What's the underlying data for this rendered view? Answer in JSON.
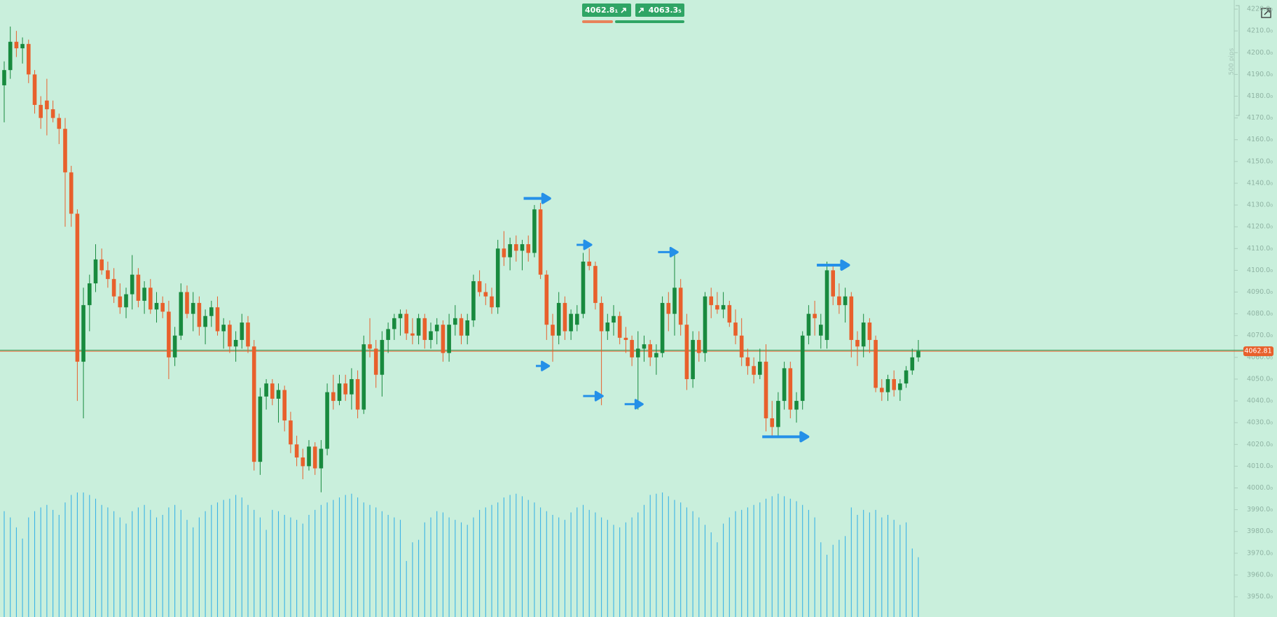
{
  "chart_data": {
    "type": "candlestick",
    "ylim": [
      3940.7,
      4224.2
    ],
    "yticks": [
      {
        "value": 3950,
        "label": "3950.0₀"
      },
      {
        "value": 3960,
        "label": "3960.0₀"
      },
      {
        "value": 3970,
        "label": "3970.0₀"
      },
      {
        "value": 3980,
        "label": "3980.0₀"
      },
      {
        "value": 3990,
        "label": "3990.0₀"
      },
      {
        "value": 4000,
        "label": "4000.0₀"
      },
      {
        "value": 4010,
        "label": "4010.0₀"
      },
      {
        "value": 4020,
        "label": "4020.0₀"
      },
      {
        "value": 4030,
        "label": "4030.0₀"
      },
      {
        "value": 4040,
        "label": "4040.0₀"
      },
      {
        "value": 4050,
        "label": "4050.0₀"
      },
      {
        "value": 4060,
        "label": "4060.0₀"
      },
      {
        "value": 4070,
        "label": "4070.0₀"
      },
      {
        "value": 4080,
        "label": "4080.0₀"
      },
      {
        "value": 4090,
        "label": "4090.0₀"
      },
      {
        "value": 4100,
        "label": "4100.0₀"
      },
      {
        "value": 4110,
        "label": "4110.0₀"
      },
      {
        "value": 4120,
        "label": "4120.0₀"
      },
      {
        "value": 4130,
        "label": "4130.0₀"
      },
      {
        "value": 4140,
        "label": "4140.0₀"
      },
      {
        "value": 4150,
        "label": "4150.0₀"
      },
      {
        "value": 4160,
        "label": "4160.0₀"
      },
      {
        "value": 4170,
        "label": "4170.0₀"
      },
      {
        "value": 4180,
        "label": "4180.0₀"
      },
      {
        "value": 4190,
        "label": "4190.0₀"
      },
      {
        "value": 4200,
        "label": "4200.0₀"
      },
      {
        "value": 4210,
        "label": "4210.0₀"
      },
      {
        "value": 4220,
        "label": "4220.0₀"
      }
    ],
    "up_color": "#188a3e",
    "down_color": "#e8602c",
    "volume_color": "#3bb3e6",
    "last_price": 4062.81,
    "ruler_label": "500 pips",
    "ohlc": [
      [
        4185,
        4196,
        4168,
        4192
      ],
      [
        4192,
        4212,
        4188,
        4205
      ],
      [
        4205,
        4210,
        4198,
        4202
      ],
      [
        4202,
        4207,
        4195,
        4204
      ],
      [
        4204,
        4206,
        4186,
        4190
      ],
      [
        4190,
        4192,
        4172,
        4176
      ],
      [
        4176,
        4180,
        4165,
        4170
      ],
      [
        4178,
        4188,
        4162,
        4174
      ],
      [
        4174,
        4178,
        4168,
        4170
      ],
      [
        4170,
        4172,
        4158,
        4165
      ],
      [
        4165,
        4170,
        4120,
        4145
      ],
      [
        4145,
        4148,
        4120,
        4126
      ],
      [
        4126,
        4128,
        4040,
        4058
      ],
      [
        4058,
        4092,
        4032,
        4084
      ],
      [
        4084,
        4098,
        4072,
        4094
      ],
      [
        4094,
        4112,
        4090,
        4105
      ],
      [
        4105,
        4110,
        4098,
        4100
      ],
      [
        4100,
        4104,
        4092,
        4096
      ],
      [
        4096,
        4101,
        4085,
        4088
      ],
      [
        4088,
        4094,
        4080,
        4083
      ],
      [
        4083,
        4092,
        4078,
        4089
      ],
      [
        4089,
        4107,
        4082,
        4098
      ],
      [
        4098,
        4101,
        4083,
        4086
      ],
      [
        4086,
        4095,
        4080,
        4092
      ],
      [
        4092,
        4096,
        4080,
        4082
      ],
      [
        4082,
        4090,
        4076,
        4085
      ],
      [
        4085,
        4088,
        4078,
        4081
      ],
      [
        4081,
        4086,
        4050,
        4060
      ],
      [
        4060,
        4074,
        4056,
        4070
      ],
      [
        4070,
        4094,
        4068,
        4090
      ],
      [
        4090,
        4093,
        4078,
        4080
      ],
      [
        4080,
        4090,
        4072,
        4085
      ],
      [
        4085,
        4088,
        4070,
        4074
      ],
      [
        4074,
        4082,
        4066,
        4079
      ],
      [
        4079,
        4086,
        4074,
        4083
      ],
      [
        4083,
        4088,
        4070,
        4072
      ],
      [
        4072,
        4078,
        4064,
        4075
      ],
      [
        4075,
        4077,
        4062,
        4065
      ],
      [
        4065,
        4072,
        4058,
        4068
      ],
      [
        4068,
        4080,
        4064,
        4076
      ],
      [
        4076,
        4079,
        4062,
        4065
      ],
      [
        4065,
        4068,
        4008,
        4012
      ],
      [
        4012,
        4046,
        4006,
        4042
      ],
      [
        4042,
        4050,
        4036,
        4048
      ],
      [
        4048,
        4050,
        4038,
        4041
      ],
      [
        4041,
        4048,
        4030,
        4045
      ],
      [
        4045,
        4047,
        4026,
        4031
      ],
      [
        4031,
        4035,
        4016,
        4020
      ],
      [
        4020,
        4024,
        4010,
        4014
      ],
      [
        4014,
        4018,
        4004,
        4010
      ],
      [
        4010,
        4022,
        4008,
        4019
      ],
      [
        4019,
        4021,
        4006,
        4009
      ],
      [
        4009,
        4022,
        3998,
        4018
      ],
      [
        4018,
        4048,
        4015,
        4044
      ],
      [
        4044,
        4052,
        4036,
        4040
      ],
      [
        4040,
        4052,
        4038,
        4048
      ],
      [
        4048,
        4052,
        4040,
        4043
      ],
      [
        4043,
        4055,
        4036,
        4050
      ],
      [
        4050,
        4054,
        4032,
        4036
      ],
      [
        4036,
        4070,
        4034,
        4066
      ],
      [
        4066,
        4078,
        4060,
        4064
      ],
      [
        4064,
        4068,
        4046,
        4052
      ],
      [
        4052,
        4072,
        4042,
        4068
      ],
      [
        4068,
        4076,
        4062,
        4073
      ],
      [
        4073,
        4080,
        4068,
        4078
      ],
      [
        4078,
        4082,
        4070,
        4080
      ],
      [
        4080,
        4082,
        4068,
        4071
      ],
      [
        4071,
        4078,
        4066,
        4070
      ],
      [
        4070,
        4080,
        4066,
        4078
      ],
      [
        4078,
        4080,
        4064,
        4068
      ],
      [
        4068,
        4076,
        4064,
        4072
      ],
      [
        4072,
        4078,
        4066,
        4075
      ],
      [
        4075,
        4077,
        4058,
        4062
      ],
      [
        4062,
        4080,
        4058,
        4075
      ],
      [
        4075,
        4084,
        4070,
        4078
      ],
      [
        4078,
        4080,
        4066,
        4070
      ],
      [
        4070,
        4080,
        4066,
        4077
      ],
      [
        4077,
        4098,
        4074,
        4095
      ],
      [
        4095,
        4100,
        4088,
        4090
      ],
      [
        4090,
        4094,
        4084,
        4088
      ],
      [
        4088,
        4092,
        4080,
        4083
      ],
      [
        4083,
        4114,
        4080,
        4110
      ],
      [
        4110,
        4118,
        4102,
        4106
      ],
      [
        4106,
        4115,
        4100,
        4112
      ],
      [
        4112,
        4116,
        4104,
        4109
      ],
      [
        4109,
        4114,
        4100,
        4112
      ],
      [
        4112,
        4116,
        4104,
        4108
      ],
      [
        4108,
        4130,
        4106,
        4128
      ],
      [
        4128,
        4131,
        4096,
        4098
      ],
      [
        4098,
        4100,
        4068,
        4075
      ],
      [
        4075,
        4080,
        4058,
        4070
      ],
      [
        4070,
        4090,
        4066,
        4085
      ],
      [
        4085,
        4088,
        4068,
        4072
      ],
      [
        4072,
        4082,
        4068,
        4080
      ],
      [
        4075,
        4084,
        4072,
        4080
      ],
      [
        4080,
        4108,
        4078,
        4104
      ],
      [
        4104,
        4110,
        4100,
        4102
      ],
      [
        4102,
        4104,
        4082,
        4085
      ],
      [
        4085,
        4088,
        4038,
        4072
      ],
      [
        4072,
        4080,
        4068,
        4076
      ],
      [
        4076,
        4084,
        4070,
        4079
      ],
      [
        4079,
        4081,
        4066,
        4069
      ],
      [
        4069,
        4074,
        4062,
        4068
      ],
      [
        4068,
        4070,
        4056,
        4060
      ],
      [
        4060,
        4072,
        4036,
        4064
      ],
      [
        4064,
        4070,
        4058,
        4066
      ],
      [
        4066,
        4068,
        4056,
        4060
      ],
      [
        4060,
        4066,
        4052,
        4062
      ],
      [
        4062,
        4088,
        4060,
        4085
      ],
      [
        4085,
        4090,
        4072,
        4080
      ],
      [
        4080,
        4108,
        4070,
        4092
      ],
      [
        4092,
        4096,
        4070,
        4075
      ],
      [
        4075,
        4080,
        4045,
        4050
      ],
      [
        4050,
        4072,
        4046,
        4068
      ],
      [
        4068,
        4072,
        4058,
        4062
      ],
      [
        4062,
        4090,
        4058,
        4088
      ],
      [
        4088,
        4092,
        4078,
        4084
      ],
      [
        4084,
        4090,
        4080,
        4082
      ],
      [
        4082,
        4090,
        4078,
        4084
      ],
      [
        4084,
        4086,
        4074,
        4076
      ],
      [
        4076,
        4082,
        4066,
        4070
      ],
      [
        4070,
        4078,
        4056,
        4060
      ],
      [
        4060,
        4064,
        4052,
        4056
      ],
      [
        4056,
        4060,
        4048,
        4052
      ],
      [
        4052,
        4064,
        4050,
        4058
      ],
      [
        4058,
        4066,
        4026,
        4032
      ],
      [
        4032,
        4040,
        4024,
        4028
      ],
      [
        4028,
        4044,
        4024,
        4040
      ],
      [
        4040,
        4058,
        4036,
        4055
      ],
      [
        4055,
        4058,
        4032,
        4036
      ],
      [
        4036,
        4044,
        4030,
        4040
      ],
      [
        4040,
        4072,
        4036,
        4070
      ],
      [
        4070,
        4084,
        4066,
        4080
      ],
      [
        4080,
        4086,
        4070,
        4078
      ],
      [
        4070,
        4080,
        4064,
        4075
      ],
      [
        4068,
        4104,
        4064,
        4100
      ],
      [
        4100,
        4102,
        4084,
        4088
      ],
      [
        4088,
        4094,
        4080,
        4084
      ],
      [
        4084,
        4092,
        4076,
        4088
      ],
      [
        4088,
        4090,
        4060,
        4068
      ],
      [
        4068,
        4072,
        4056,
        4065
      ],
      [
        4065,
        4080,
        4060,
        4076
      ],
      [
        4076,
        4078,
        4062,
        4068
      ],
      [
        4068,
        4070,
        4044,
        4046
      ],
      [
        4046,
        4050,
        4040,
        4044
      ],
      [
        4044,
        4052,
        4040,
        4050
      ],
      [
        4050,
        4054,
        4042,
        4045
      ],
      [
        4045,
        4050,
        4040,
        4048
      ],
      [
        4048,
        4056,
        4046,
        4054
      ],
      [
        4054,
        4064,
        4052,
        4060
      ],
      [
        4060,
        4068,
        4058,
        4063
      ]
    ],
    "volume": [
      85,
      80,
      72,
      63,
      80,
      85,
      88,
      90,
      86,
      82,
      92,
      98,
      100,
      100,
      98,
      95,
      90,
      88,
      85,
      80,
      75,
      85,
      88,
      90,
      86,
      80,
      82,
      88,
      90,
      86,
      78,
      72,
      80,
      85,
      90,
      92,
      94,
      95,
      98,
      96,
      90,
      86,
      80,
      70,
      86,
      85,
      82,
      80,
      78,
      75,
      82,
      86,
      90,
      92,
      94,
      96,
      98,
      99,
      96,
      92,
      90,
      88,
      85,
      82,
      80,
      78,
      45,
      60,
      62,
      76,
      80,
      85,
      84,
      80,
      78,
      76,
      74,
      80,
      86,
      88,
      90,
      92,
      96,
      98,
      99,
      97,
      94,
      92,
      88,
      85,
      82,
      80,
      78,
      84,
      88,
      90,
      86,
      84,
      80,
      78,
      74,
      72,
      76,
      80,
      84,
      90,
      98,
      99,
      100,
      97,
      94,
      92,
      88,
      85,
      80,
      74,
      68,
      60,
      75,
      80,
      85,
      86,
      88,
      90,
      92,
      95,
      97,
      99,
      97,
      95,
      93,
      90,
      86,
      80,
      60,
      50,
      58,
      62,
      65,
      88,
      82,
      86,
      84,
      86,
      80,
      82,
      78,
      74,
      76,
      55,
      48
    ]
  },
  "trade_panel": {
    "sell": "4062.8₁",
    "buy": "4063.3₅"
  }
}
